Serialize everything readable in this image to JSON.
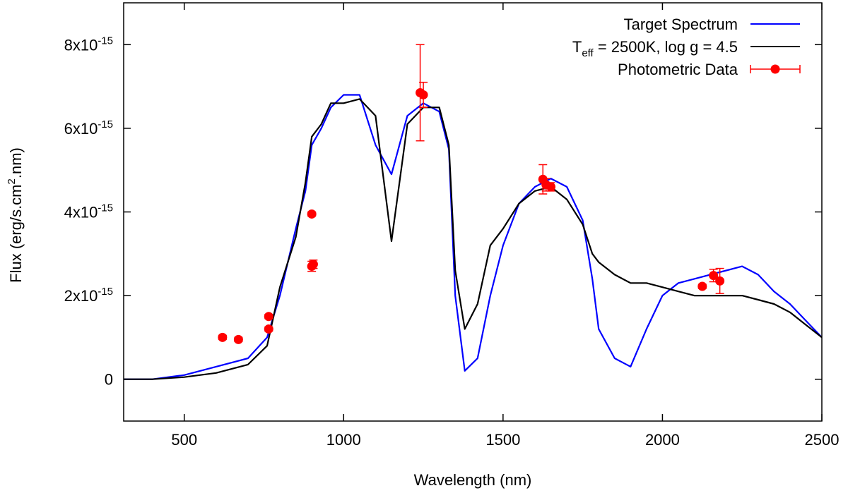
{
  "chart_data": {
    "type": "line",
    "title": "",
    "xlabel": "Wavelength (nm)",
    "ylabel": {
      "pre": "Flux (erg/s.cm",
      "sup": "2",
      "post": ".nm)"
    },
    "xlim": [
      310,
      2500
    ],
    "ylim": [
      -1e-15,
      9e-15
    ],
    "x_ticks": [
      500,
      1000,
      1500,
      2000,
      2500
    ],
    "x_tick_labels": [
      "500",
      "1000",
      "1500",
      "2000",
      "2500"
    ],
    "y_ticks": [
      0,
      2e-15,
      4e-15,
      6e-15,
      8e-15
    ],
    "y_tick_labels": [
      {
        "base": "0",
        "exp": ""
      },
      {
        "base": "2x10",
        "exp": "-15"
      },
      {
        "base": "4x10",
        "exp": "-15"
      },
      {
        "base": "6x10",
        "exp": "-15"
      },
      {
        "base": "8x10",
        "exp": "-15"
      }
    ],
    "grid": false,
    "legend_position": "top-right",
    "series": [
      {
        "name": "Target Spectrum",
        "color": "#0000ff",
        "kind": "line",
        "x": [
          310,
          400,
          500,
          600,
          700,
          760,
          800,
          850,
          880,
          900,
          930,
          960,
          1000,
          1050,
          1100,
          1150,
          1200,
          1250,
          1300,
          1330,
          1350,
          1380,
          1420,
          1460,
          1500,
          1550,
          1600,
          1650,
          1700,
          1750,
          1780,
          1800,
          1850,
          1900,
          1950,
          2000,
          2050,
          2100,
          2150,
          2200,
          2250,
          2300,
          2350,
          2400,
          2450,
          2500
        ],
        "y": [
          0,
          0,
          1e-16,
          3e-16,
          5e-16,
          1e-15,
          2e-15,
          3.6e-15,
          4.5e-15,
          5.6e-15,
          6e-15,
          6.5e-15,
          6.8e-15,
          6.8e-15,
          5.6e-15,
          4.9e-15,
          6.3e-15,
          6.6e-15,
          6.4e-15,
          5.5e-15,
          2e-15,
          2e-16,
          5e-16,
          2e-15,
          3.2e-15,
          4.2e-15,
          4.6e-15,
          4.8e-15,
          4.6e-15,
          3.8e-15,
          2.4e-15,
          1.2e-15,
          5e-16,
          3e-16,
          1.2e-15,
          2e-15,
          2.3e-15,
          2.4e-15,
          2.5e-15,
          2.6e-15,
          2.7e-15,
          2.5e-15,
          2.1e-15,
          1.8e-15,
          1.4e-15,
          1e-15
        ]
      },
      {
        "name": "T_eff = 2500K, log g = 4.5",
        "color": "#000000",
        "kind": "line",
        "x": [
          310,
          400,
          500,
          600,
          700,
          760,
          800,
          850,
          880,
          900,
          930,
          960,
          1000,
          1050,
          1100,
          1150,
          1200,
          1250,
          1300,
          1330,
          1350,
          1380,
          1420,
          1460,
          1500,
          1550,
          1600,
          1650,
          1700,
          1750,
          1780,
          1800,
          1850,
          1900,
          1950,
          2000,
          2050,
          2100,
          2150,
          2200,
          2250,
          2300,
          2350,
          2400,
          2450,
          2500
        ],
        "y": [
          0,
          0,
          5e-17,
          1.5e-16,
          3.5e-16,
          8e-16,
          2.2e-15,
          3.4e-15,
          4.7e-15,
          5.8e-15,
          6.1e-15,
          6.6e-15,
          6.6e-15,
          6.7e-15,
          6.3e-15,
          3.3e-15,
          6.1e-15,
          6.5e-15,
          6.5e-15,
          5.6e-15,
          2.6e-15,
          1.2e-15,
          1.8e-15,
          3.2e-15,
          3.6e-15,
          4.2e-15,
          4.5e-15,
          4.6e-15,
          4.3e-15,
          3.7e-15,
          3e-15,
          2.8e-15,
          2.5e-15,
          2.3e-15,
          2.3e-15,
          2.2e-15,
          2.1e-15,
          2e-15,
          2e-15,
          2e-15,
          2e-15,
          1.9e-15,
          1.8e-15,
          1.6e-15,
          1.3e-15,
          1e-15
        ]
      },
      {
        "name": "Photometric Data",
        "color": "#ff0000",
        "kind": "errorbar-points",
        "points": [
          {
            "x": 620,
            "y": 1e-15,
            "yerr": 5e-17
          },
          {
            "x": 670,
            "y": 9.5e-16,
            "yerr": 5e-17
          },
          {
            "x": 765,
            "y": 1.2e-15,
            "yerr": 5e-17
          },
          {
            "x": 765,
            "y": 1.5e-15,
            "yerr": 5e-17
          },
          {
            "x": 900,
            "y": 2.7e-15,
            "yerr": 1.2e-16
          },
          {
            "x": 905,
            "y": 2.75e-15,
            "yerr": 1e-16
          },
          {
            "x": 900,
            "y": 3.95e-15,
            "yerr": 5e-17
          },
          {
            "x": 1240,
            "y": 6.85e-15,
            "yerr": 1.15e-15
          },
          {
            "x": 1250,
            "y": 6.8e-15,
            "yerr": 3e-16
          },
          {
            "x": 1625,
            "y": 4.78e-15,
            "yerr": 3.5e-16
          },
          {
            "x": 1635,
            "y": 4.65e-15,
            "yerr": 1.5e-16
          },
          {
            "x": 1650,
            "y": 4.6e-15,
            "yerr": 1e-16
          },
          {
            "x": 2125,
            "y": 2.22e-15,
            "yerr": 5e-17
          },
          {
            "x": 2160,
            "y": 2.48e-15,
            "yerr": 1.5e-16
          },
          {
            "x": 2180,
            "y": 2.35e-15,
            "yerr": 3e-16
          }
        ]
      }
    ],
    "legend": [
      {
        "label_pre": "Target Spectrum",
        "sub": "",
        "label_post": ""
      },
      {
        "label_pre": "T",
        "sub": "eff",
        "label_post": " = 2500K, log g = 4.5"
      },
      {
        "label_pre": "Photometric Data",
        "sub": "",
        "label_post": ""
      }
    ]
  }
}
